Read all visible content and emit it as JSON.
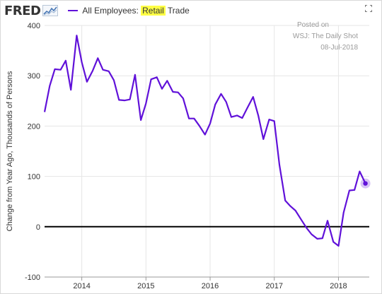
{
  "header": {
    "logo_text": "FRED",
    "logo_icon": "fred-line-graph-icon",
    "legend_prefix": "All Employees: ",
    "legend_highlight": "Retail",
    "legend_suffix": " Trade",
    "expand_icon": "expand-icon"
  },
  "annotations": {
    "posted_label": "Posted on",
    "source": "WSJ: The Daily Shot",
    "date": "08-Jul-2018"
  },
  "colors": {
    "series": "#6011d9",
    "highlight": "#ffff44",
    "zero_line": "#000000",
    "grid": "#e6e6e6"
  },
  "chart_data": {
    "type": "line",
    "title": "",
    "ylabel": "Change from Year Ago, Thousands of Persons",
    "xlabel": "",
    "ylim": [
      -100,
      400
    ],
    "yticks": [
      -100,
      0,
      100,
      200,
      300,
      400
    ],
    "xticks": [
      "2014",
      "2015",
      "2016",
      "2017",
      "2018"
    ],
    "xticks_values": [
      2014.0,
      2015.0,
      2016.0,
      2017.0,
      2018.0
    ],
    "xlim": [
      2013.42,
      2018.48
    ],
    "grid": true,
    "series": [
      {
        "name": "All Employees: Retail Trade",
        "x": [
          2013.42,
          2013.5,
          2013.58,
          2013.67,
          2013.75,
          2013.83,
          2013.92,
          2014.0,
          2014.08,
          2014.17,
          2014.25,
          2014.33,
          2014.42,
          2014.5,
          2014.58,
          2014.67,
          2014.75,
          2014.83,
          2014.92,
          2015.0,
          2015.08,
          2015.17,
          2015.25,
          2015.33,
          2015.42,
          2015.5,
          2015.58,
          2015.67,
          2015.75,
          2015.83,
          2015.92,
          2016.0,
          2016.08,
          2016.17,
          2016.25,
          2016.33,
          2016.42,
          2016.5,
          2016.58,
          2016.67,
          2016.75,
          2016.83,
          2016.92,
          2017.0,
          2017.08,
          2017.17,
          2017.25,
          2017.33,
          2017.42,
          2017.5,
          2017.58,
          2017.67,
          2017.75,
          2017.83,
          2017.92,
          2018.0,
          2018.08,
          2018.17,
          2018.25,
          2018.33,
          2018.42
        ],
        "values": [
          228,
          280,
          313,
          312,
          330,
          272,
          380,
          327,
          288,
          310,
          335,
          312,
          309,
          291,
          252,
          251,
          253,
          302,
          212,
          245,
          293,
          297,
          274,
          290,
          268,
          267,
          255,
          215,
          215,
          201,
          183,
          205,
          243,
          264,
          248,
          218,
          221,
          216,
          236,
          258,
          221,
          174,
          213,
          210,
          123,
          52,
          41,
          32,
          14,
          -2,
          -15,
          -24,
          -23,
          12,
          -30,
          -38,
          28,
          72,
          73,
          110,
          86
        ]
      }
    ]
  }
}
